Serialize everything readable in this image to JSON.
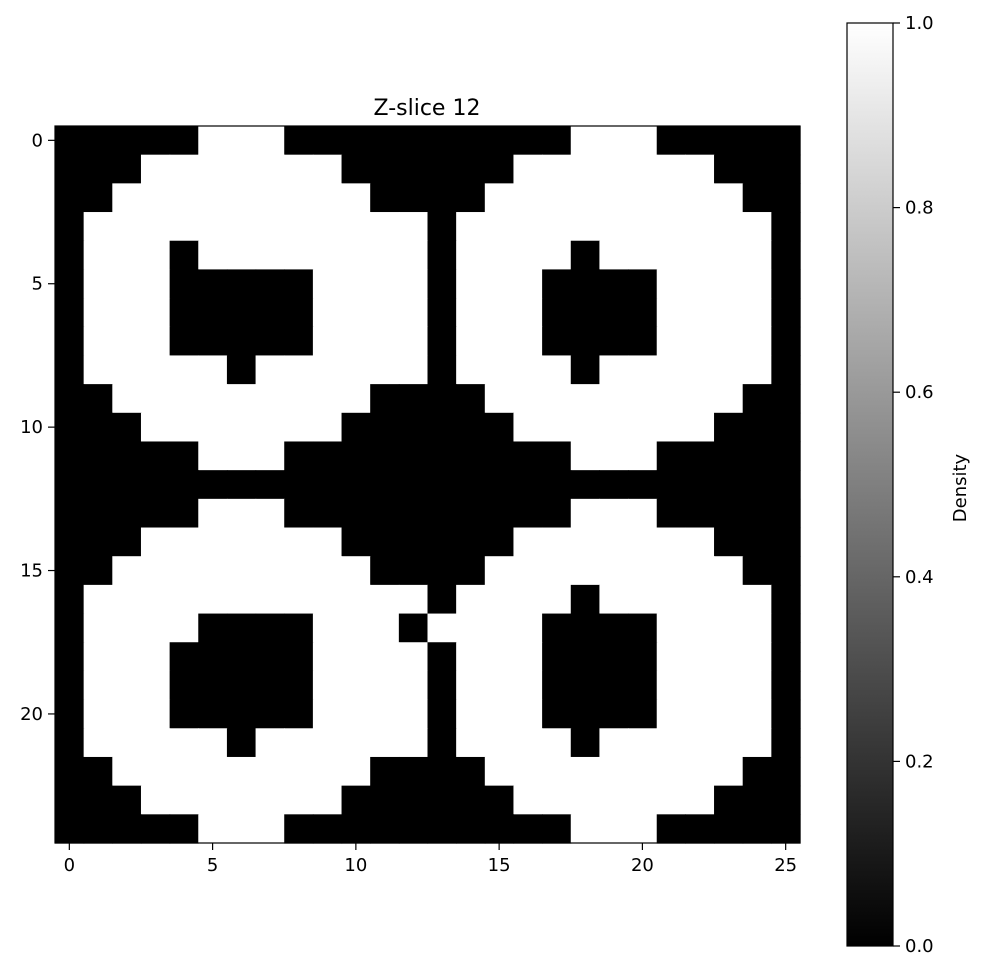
{
  "chart_data": {
    "type": "heatmap",
    "title": "Z-slice 12",
    "xlabel": "",
    "ylabel": "",
    "x_ticks": [
      0,
      5,
      10,
      15,
      20,
      25
    ],
    "y_ticks": [
      0,
      5,
      10,
      15,
      20
    ],
    "xlim": [
      -0.5,
      25.5
    ],
    "ylim": [
      24.5,
      -0.5
    ],
    "n_cols": 26,
    "n_rows": 25,
    "colormap": "gray",
    "color_low": "#000000",
    "color_high": "#ffffff",
    "colorbar": {
      "label": "Density",
      "min": 0.0,
      "max": 1.0,
      "ticks": [
        "0.0",
        "0.2",
        "0.4",
        "0.6",
        "0.8",
        "1.0"
      ]
    },
    "grid": false,
    "rows": [
      "00000111000000000011100000",
      "00011111110000001111111000",
      "00111111111000011111111100",
      "01111111111110111111111110",
      "01110111111110111101111110",
      "01110000011110111000011110",
      "01110000011110111000011110",
      "01110000011110111000011110",
      "01111101111110111101111110",
      "00111111111000011111111100",
      "00011111110000001111111000",
      "00000111000000000011100000",
      "00000000000000000000000000",
      "00000111000000000011100000",
      "00011111110000001111111000",
      "00111111111000011111111100",
      "01111111111110111101111110",
      "01111000011101111000011110",
      "01110000011110111000011110",
      "01110000011110111000011110",
      "01110000011110111000011110",
      "01111101111110111101111110",
      "00111111111000011111111100",
      "00011111110000001111111000",
      "00000111000000000011100000"
    ]
  }
}
